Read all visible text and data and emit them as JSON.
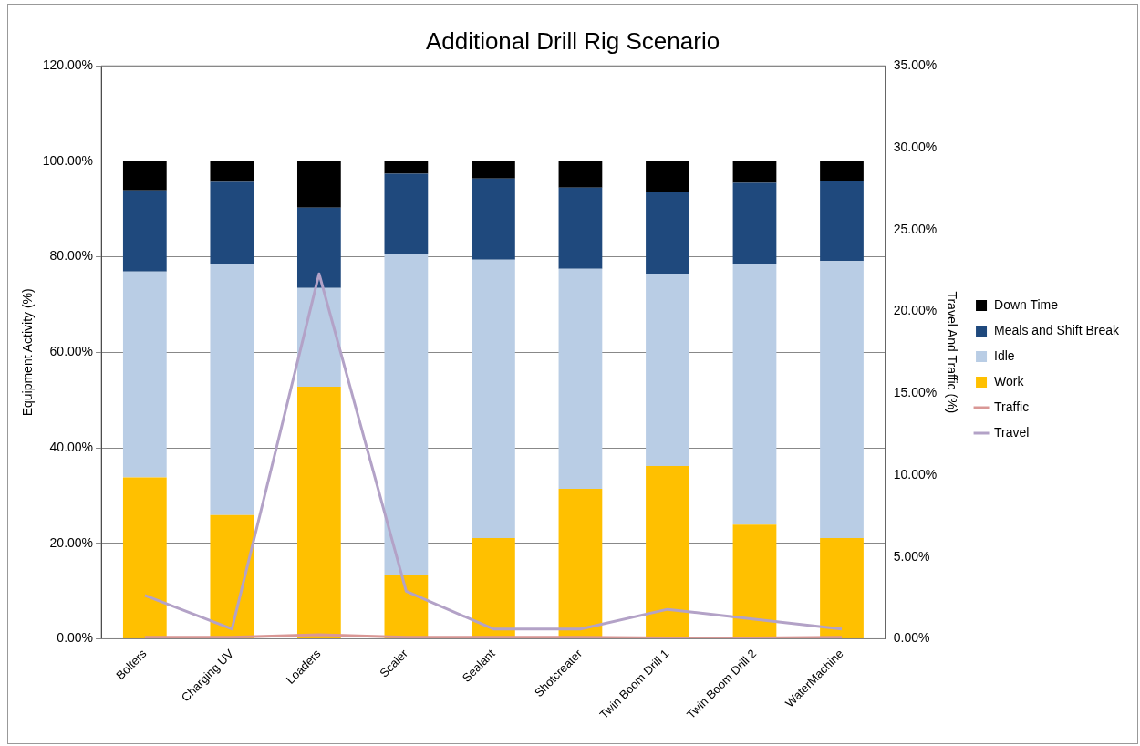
{
  "chart_data": {
    "type": "bar",
    "title": "Additional Drill Rig Scenario",
    "ylabel": "Equipment Activity (%)",
    "y2label": "Travel And Traffic (%)",
    "categories": [
      "Bolters",
      "Charging UV",
      "Loaders",
      "Scaler",
      "Sealant",
      "Shotcreater",
      "Twin Boom Drill 1",
      "Twin Boom Drill 2",
      "WaterMachine"
    ],
    "stacked": true,
    "legend": "right",
    "grid": "y",
    "marker": "none",
    "ylim": [
      0,
      120
    ],
    "yticks": [
      {
        "value": 0,
        "label": "0.00%"
      },
      {
        "value": 20,
        "label": "20.00%"
      },
      {
        "value": 40,
        "label": "40.00%"
      },
      {
        "value": 60,
        "label": "60.00%"
      },
      {
        "value": 80,
        "label": "80.00%"
      },
      {
        "value": 100,
        "label": "100.00%"
      },
      {
        "value": 120,
        "label": "120.00%"
      }
    ],
    "y2lim": [
      0,
      35
    ],
    "y2ticks": [
      {
        "value": 0,
        "label": "0.00%"
      },
      {
        "value": 5,
        "label": "5.00%"
      },
      {
        "value": 10,
        "label": "10.00%"
      },
      {
        "value": 15,
        "label": "15.00%"
      },
      {
        "value": 20,
        "label": "20.00%"
      },
      {
        "value": 25,
        "label": "25.00%"
      },
      {
        "value": 30,
        "label": "30.00%"
      },
      {
        "value": 35,
        "label": "35.00%"
      }
    ],
    "series": [
      {
        "name": "Work",
        "color": "#ffc000",
        "values": [
          33.8,
          25.9,
          52.8,
          13.4,
          21.1,
          31.4,
          36.2,
          23.9,
          21.1
        ]
      },
      {
        "name": "Idle",
        "color": "#b9cde5",
        "values": [
          43.1,
          52.6,
          20.7,
          67.2,
          58.3,
          46.1,
          40.3,
          54.6,
          58.0
        ]
      },
      {
        "name": "Meals and Shift Break",
        "color": "#1f497d",
        "values": [
          17.0,
          17.2,
          16.8,
          16.8,
          17.0,
          17.0,
          17.2,
          17.0,
          16.7
        ]
      },
      {
        "name": "Down Time",
        "color": "#000000",
        "values": [
          6.1,
          4.3,
          9.7,
          2.6,
          3.6,
          5.5,
          6.3,
          4.5,
          4.2
        ]
      },
      {
        "name": "Traffic",
        "type": "line",
        "axis": "y2",
        "color": "#d99795",
        "values": [
          0.1,
          0.1,
          0.25,
          0.1,
          0.1,
          0.1,
          0.05,
          0.05,
          0.1
        ]
      },
      {
        "name": "Travel",
        "type": "line",
        "axis": "y2",
        "color": "#b3a2c7",
        "values": [
          2.65,
          0.6,
          22.3,
          2.9,
          0.6,
          0.6,
          1.8,
          1.2,
          0.6
        ]
      }
    ]
  }
}
